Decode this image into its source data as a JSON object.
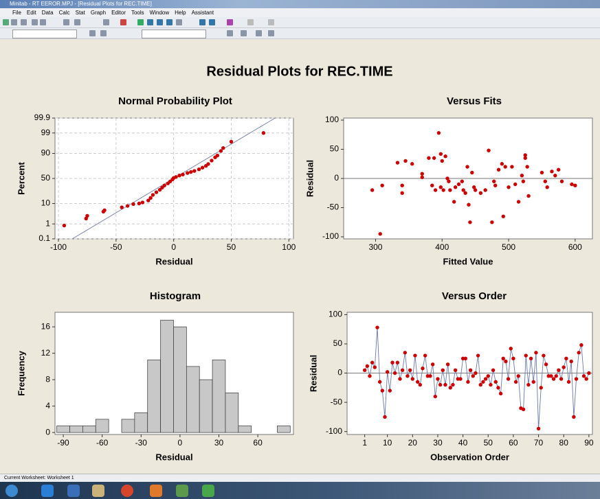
{
  "window": {
    "title": "Minitab - RT EEROR.MPJ - [Residual Plots for REC.TIME]",
    "menu": [
      "File",
      "Edit",
      "Data",
      "Calc",
      "Stat",
      "Graph",
      "Editor",
      "Tools",
      "Window",
      "Help",
      "Assistant"
    ],
    "status": "Current Worksheet: Worksheet 1"
  },
  "graph_title": "Residual Plots for REC.TIME",
  "chart_data": [
    {
      "type": "scatter",
      "title": "Normal Probability Plot",
      "x_label": "Residual",
      "y_label": "Percent",
      "yscale": "probability",
      "grid": true,
      "color": "#cc0000",
      "line_color": "#7a84a8",
      "x": [
        -95,
        -76,
        -75,
        -61,
        -60,
        -45,
        -40,
        -35,
        -30,
        -27,
        -22,
        -20,
        -18,
        -15,
        -12,
        -10,
        -8,
        -5,
        -3,
        -1,
        0,
        2,
        5,
        8,
        12,
        15,
        18,
        22,
        25,
        28,
        30,
        33,
        36,
        38,
        41,
        43,
        50,
        78
      ],
      "y": [
        0.8,
        2,
        2.8,
        4.5,
        5.2,
        7,
        8,
        9.5,
        10,
        11,
        13,
        16,
        20,
        24,
        28,
        32,
        36,
        40,
        44,
        48,
        51,
        53,
        56,
        58,
        61,
        63,
        65,
        68,
        71,
        74,
        77,
        82,
        86,
        88,
        92,
        94,
        97,
        99
      ],
      "fit_line": {
        "x": [
          -88,
          88
        ],
        "y": [
          0.1,
          99.9
        ]
      },
      "xlim": [
        -103,
        104
      ],
      "xticks": [
        -100,
        -50,
        0,
        50,
        100
      ],
      "ylim": [
        0.1,
        99.9
      ],
      "yticks": [
        0.1,
        1,
        10,
        50,
        90,
        99,
        99.9
      ]
    },
    {
      "type": "scatter",
      "title": "Versus Fits",
      "x_label": "Fitted Value",
      "y_label": "Residual",
      "color": "#cc0000",
      "line_color": "#7a84a8",
      "ref_line": 0,
      "x": [
        295,
        307,
        310,
        333,
        340,
        340,
        345,
        355,
        370,
        370,
        380,
        385,
        388,
        390,
        395,
        398,
        398,
        400,
        402,
        405,
        408,
        410,
        412,
        418,
        420,
        425,
        430,
        432,
        435,
        438,
        440,
        442,
        445,
        448,
        450,
        458,
        465,
        470,
        475,
        478,
        480,
        485,
        490,
        492,
        495,
        500,
        505,
        510,
        515,
        520,
        522,
        525,
        525,
        528,
        530,
        550,
        555,
        558,
        565,
        570,
        575,
        580,
        595,
        600
      ],
      "y": [
        -20,
        -95,
        -12,
        27,
        -12,
        -25,
        30,
        25,
        8,
        2,
        35,
        -12,
        35,
        -20,
        78,
        -15,
        42,
        30,
        -20,
        38,
        0,
        -5,
        -20,
        -40,
        -15,
        -10,
        -5,
        -20,
        -25,
        20,
        -45,
        -75,
        10,
        -15,
        -20,
        -25,
        -20,
        48,
        -75,
        -5,
        -12,
        15,
        25,
        -65,
        20,
        -15,
        20,
        -10,
        -40,
        5,
        -5,
        35,
        40,
        20,
        -30,
        10,
        -5,
        -15,
        12,
        5,
        15,
        -5,
        -10,
        -12
      ],
      "xlim": [
        252,
        626
      ],
      "xticks": [
        300,
        400,
        500,
        600
      ],
      "ylim": [
        -103.5,
        103.5
      ],
      "yticks": [
        -100,
        -50,
        0,
        50,
        100
      ]
    },
    {
      "type": "histogram",
      "title": "Histogram",
      "x_label": "Residual",
      "y_label": "Frequency",
      "color": "#c8c8c8",
      "bins": [
        -95,
        -85,
        -75,
        -65,
        -55,
        -45,
        -35,
        -25,
        -15,
        -5,
        5,
        15,
        25,
        35,
        45,
        55,
        65,
        75,
        85
      ],
      "values": [
        1,
        1,
        1,
        2,
        0,
        2,
        3,
        11,
        17,
        16,
        10,
        8,
        11,
        6,
        1,
        0,
        0,
        1
      ],
      "xlim": [
        -96.4,
        87.5
      ],
      "xticks": [
        -90,
        -60,
        -30,
        0,
        30,
        60
      ],
      "ylim": [
        -0.3,
        18.2
      ],
      "yticks": [
        0,
        4,
        8,
        12,
        16
      ]
    },
    {
      "type": "line",
      "title": "Versus Order",
      "x_label": "Observation Order",
      "y_label": "Residual",
      "color": "#cc0000",
      "line_color": "#6a78a8",
      "ref_line": 0,
      "x": [
        1,
        2,
        3,
        4,
        5,
        6,
        7,
        8,
        9,
        10,
        11,
        12,
        13,
        14,
        15,
        16,
        17,
        18,
        19,
        20,
        21,
        22,
        23,
        24,
        25,
        26,
        27,
        28,
        29,
        30,
        31,
        32,
        33,
        34,
        35,
        36,
        37,
        38,
        39,
        40,
        41,
        42,
        43,
        44,
        45,
        46,
        47,
        48,
        49,
        50,
        51,
        52,
        53,
        54,
        55,
        56,
        57,
        58,
        59,
        60,
        61,
        62,
        63,
        64,
        65,
        66,
        67,
        68,
        69,
        70,
        71,
        72,
        73,
        74,
        75,
        76,
        77,
        78,
        79,
        80,
        81,
        82,
        83,
        84,
        85,
        86,
        87,
        88,
        89,
        90
      ],
      "y": [
        5,
        12,
        -5,
        18,
        10,
        78,
        -15,
        -30,
        -75,
        2,
        -30,
        18,
        0,
        18,
        -10,
        5,
        35,
        -5,
        5,
        -10,
        30,
        -15,
        -20,
        8,
        30,
        -5,
        -5,
        15,
        -40,
        -10,
        -20,
        5,
        -20,
        15,
        -25,
        -20,
        5,
        -10,
        -10,
        25,
        25,
        -15,
        5,
        -5,
        0,
        30,
        -20,
        -15,
        -10,
        -5,
        -20,
        5,
        -15,
        -25,
        -35,
        25,
        20,
        -10,
        42,
        25,
        -15,
        -5,
        -60,
        -62,
        30,
        -20,
        25,
        -15,
        35,
        -95,
        -25,
        30,
        15,
        -5,
        -5,
        -10,
        -5,
        5,
        -10,
        10,
        25,
        -15,
        20,
        -75,
        -10,
        35,
        48,
        -5,
        -10,
        0
      ],
      "xlim": [
        -6,
        91.4
      ],
      "xticks": [
        1,
        10,
        20,
        30,
        40,
        50,
        60,
        70,
        80,
        90
      ],
      "ylim": [
        -105,
        104
      ],
      "yticks": [
        -100,
        -50,
        0,
        50,
        100
      ]
    }
  ]
}
